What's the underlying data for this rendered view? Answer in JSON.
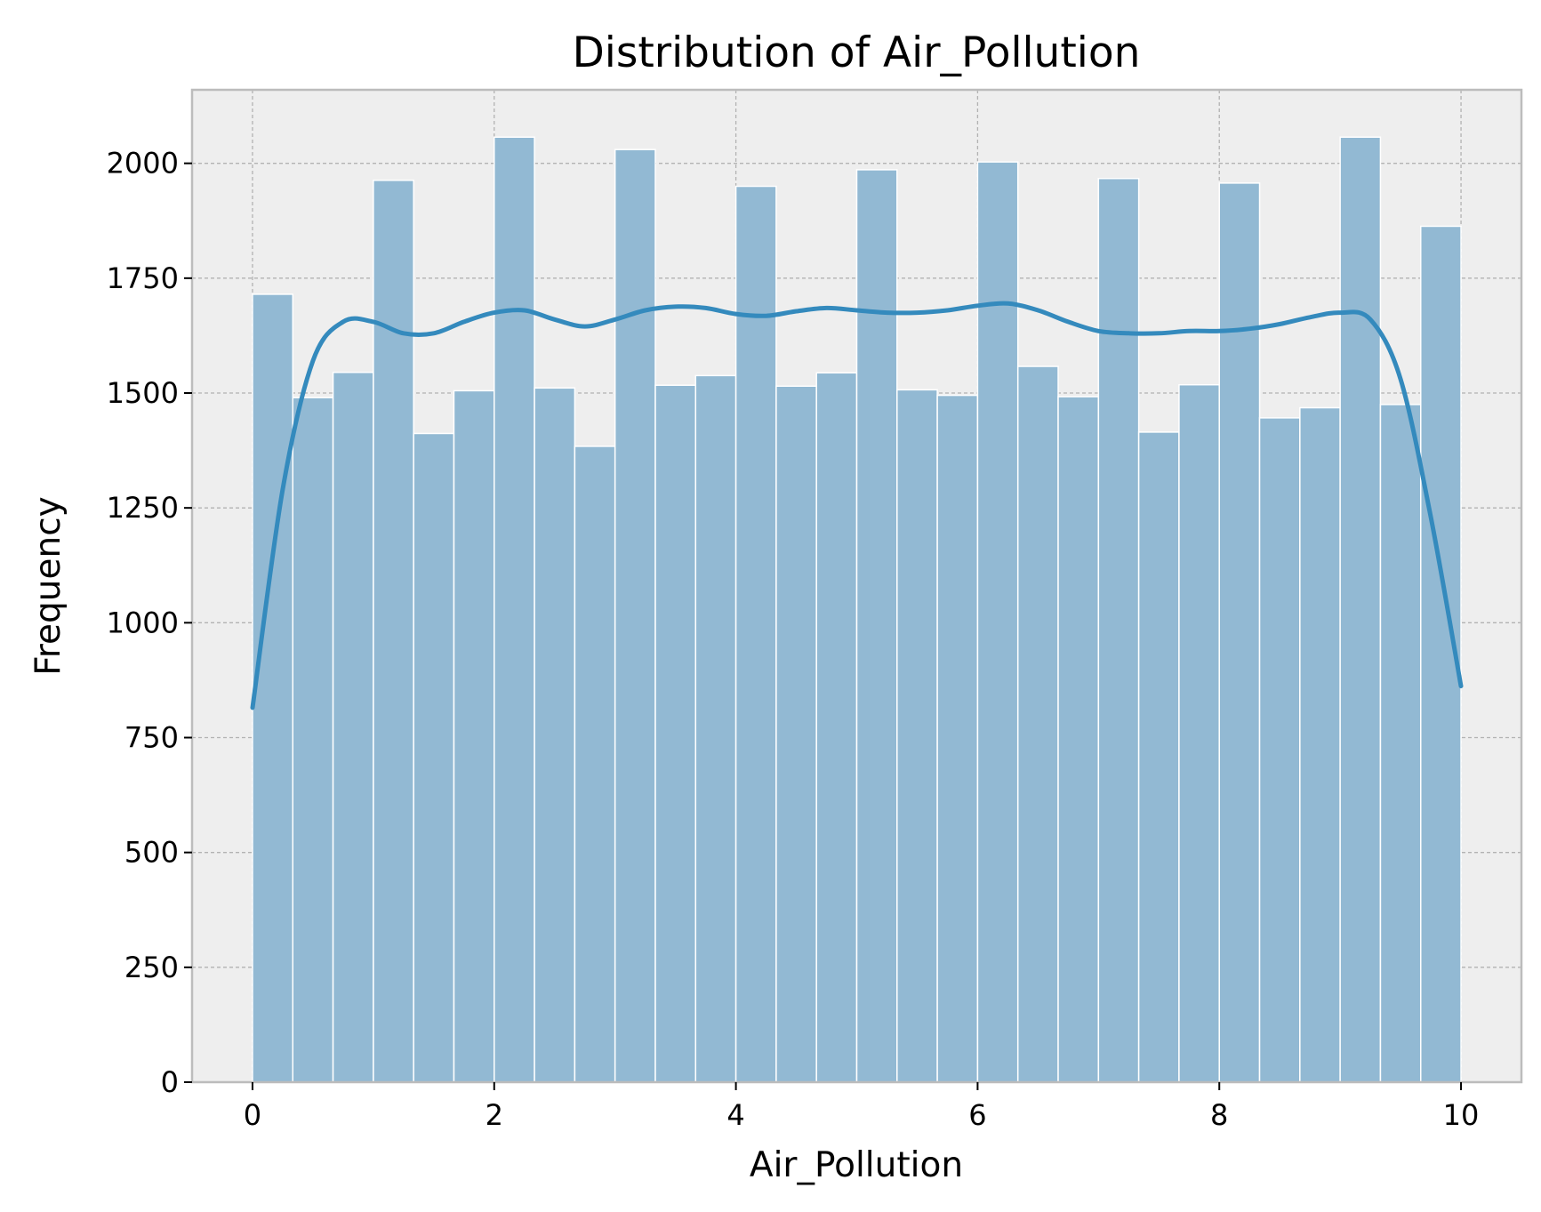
{
  "chart_data": {
    "type": "bar",
    "title": "Distribution of Air_Pollution",
    "xlabel": "Air_Pollution",
    "ylabel": "Frequency",
    "xlim": [
      -0.5,
      10.5
    ],
    "ylim": [
      0,
      2160
    ],
    "xticks": [
      0,
      2,
      4,
      6,
      8,
      10
    ],
    "yticks": [
      0,
      250,
      500,
      750,
      1000,
      1250,
      1500,
      1750,
      2000
    ],
    "grid": true,
    "bin_range": [
      0,
      10
    ],
    "bins": 30,
    "values": [
      1715,
      1490,
      1545,
      1963,
      1412,
      1505,
      2057,
      1511,
      1384,
      2030,
      1517,
      1538,
      1950,
      1515,
      1544,
      1986,
      1507,
      1495,
      2003,
      1558,
      1492,
      1967,
      1415,
      1518,
      1957,
      1446,
      1468,
      2057,
      1475,
      1863
    ],
    "kde": {
      "x": [
        0,
        0.25,
        0.5,
        0.75,
        1.0,
        1.25,
        1.5,
        1.75,
        2.0,
        2.25,
        2.5,
        2.75,
        3.0,
        3.25,
        3.5,
        3.75,
        4.0,
        4.25,
        4.5,
        4.75,
        5.0,
        5.25,
        5.5,
        5.75,
        6.0,
        6.25,
        6.5,
        6.75,
        7.0,
        7.25,
        7.5,
        7.75,
        8.0,
        8.25,
        8.5,
        8.75,
        9.0,
        9.25,
        9.5,
        9.75,
        10.0
      ],
      "y": [
        815,
        1290,
        1570,
        1655,
        1655,
        1630,
        1630,
        1655,
        1675,
        1680,
        1660,
        1645,
        1660,
        1680,
        1688,
        1685,
        1672,
        1668,
        1678,
        1685,
        1680,
        1675,
        1675,
        1680,
        1690,
        1695,
        1680,
        1655,
        1635,
        1630,
        1630,
        1635,
        1635,
        1640,
        1650,
        1665,
        1675,
        1660,
        1530,
        1230,
        862
      ]
    }
  },
  "colors": {
    "bar": "#92b9d3",
    "kde": "#348abd",
    "plot_background": "#eeeeee",
    "grid": "#b2b2b2",
    "spine": "#bcbcbc"
  }
}
